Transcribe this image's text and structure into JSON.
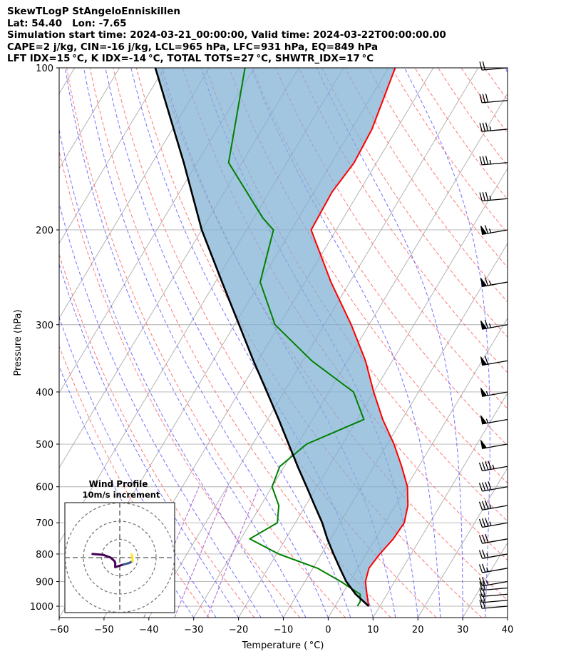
{
  "header": {
    "lines": [
      "SkewTLogP StAngeloEnniskillen",
      "Lat: 54.40   Lon: -7.65",
      "Simulation start time: 2024-03-21_00:00:00, Valid time: 2024-03-22T00:00:00.00",
      "CAPE=2 j/kg, CIN=-16 j/kg, LCL=965 hPa, LFC=931 hPa, EQ=849 hPa",
      "LFT IDX=15 °C, K IDX=-14 °C, TOTAL TOTS=27 °C, SHWTR_IDX=17 °C"
    ]
  },
  "chart_data": {
    "type": "line",
    "skew": "skew-T log-p",
    "xlabel": "Temperature ( °C)",
    "ylabel": "Pressure (hPa)",
    "xlim": [
      -60,
      40
    ],
    "ylim": [
      1050,
      100
    ],
    "x_ticks": [
      -60,
      -50,
      -40,
      -30,
      -20,
      -10,
      0,
      10,
      20,
      30,
      40
    ],
    "x_tick_labels": [
      "−60",
      "−50",
      "−40",
      "−30",
      "−20",
      "−10",
      "0",
      "10",
      "20",
      "30",
      "40"
    ],
    "y_ticks": [
      1000,
      900,
      800,
      700,
      600,
      500,
      400,
      300,
      200,
      100
    ],
    "y_tick_labels": [
      "1000",
      "900",
      "800",
      "700",
      "600",
      "500",
      "400",
      "300",
      "200",
      "100"
    ],
    "grid": true,
    "colors": {
      "temperature": "#ff0000",
      "dewpoint": "#008000",
      "parcel": "#000000",
      "cape_cin_fill": "#7fb0d4",
      "dry_adiabats": "#ff6060",
      "moist_adiabats": "#5a5aff",
      "mixing_ratio": "#b070d0",
      "isotherms": "#aaaaaa"
    },
    "series": [
      {
        "role": "temperature",
        "points": [
          [
            1000,
            7.5
          ],
          [
            950,
            5.5
          ],
          [
            900,
            3.5
          ],
          [
            850,
            2.5
          ],
          [
            800,
            3.0
          ],
          [
            750,
            4.0
          ],
          [
            700,
            4.3
          ],
          [
            650,
            2.8
          ],
          [
            600,
            0.2
          ],
          [
            550,
            -3.8
          ],
          [
            500,
            -8.5
          ],
          [
            450,
            -14.3
          ],
          [
            400,
            -20.0
          ],
          [
            350,
            -26.0
          ],
          [
            300,
            -34.0
          ],
          [
            250,
            -44.2
          ],
          [
            200,
            -55.6
          ],
          [
            170,
            -56.0
          ],
          [
            150,
            -55.0
          ],
          [
            130,
            -55.5
          ],
          [
            100,
            -58.5
          ]
        ]
      },
      {
        "role": "dewpoint",
        "points": [
          [
            1000,
            5.0
          ],
          [
            980,
            5.0
          ],
          [
            950,
            4.0
          ],
          [
            900,
            -2.0
          ],
          [
            850,
            -9.0
          ],
          [
            800,
            -19.5
          ],
          [
            750,
            -28.0
          ],
          [
            700,
            -24.0
          ],
          [
            650,
            -26.0
          ],
          [
            600,
            -30.0
          ],
          [
            550,
            -31.0
          ],
          [
            500,
            -28.0
          ],
          [
            450,
            -18.5
          ],
          [
            400,
            -24.5
          ],
          [
            350,
            -38.0
          ],
          [
            300,
            -51.0
          ],
          [
            250,
            -60.0
          ],
          [
            200,
            -64.0
          ],
          [
            190,
            -68.0
          ],
          [
            150,
            -83.0
          ],
          [
            100,
            -92.0
          ]
        ]
      },
      {
        "role": "parcel",
        "points": [
          [
            1000,
            7.5
          ],
          [
            950,
            3.0
          ],
          [
            900,
            -0.8
          ],
          [
            850,
            -4.0
          ],
          [
            800,
            -7.3
          ],
          [
            750,
            -10.7
          ],
          [
            700,
            -14.0
          ],
          [
            650,
            -18.0
          ],
          [
            600,
            -22.3
          ],
          [
            550,
            -27.0
          ],
          [
            500,
            -32.0
          ],
          [
            450,
            -37.5
          ],
          [
            400,
            -43.8
          ],
          [
            350,
            -51.0
          ],
          [
            300,
            -59.0
          ],
          [
            250,
            -68.5
          ],
          [
            200,
            -80.0
          ],
          [
            150,
            -93.0
          ],
          [
            100,
            -112.0
          ]
        ]
      }
    ],
    "wind_barbs_kt": [
      {
        "p": 1000,
        "speed": 20,
        "dir": 265
      },
      {
        "p": 975,
        "speed": 20,
        "dir": 265
      },
      {
        "p": 950,
        "speed": 20,
        "dir": 265
      },
      {
        "p": 925,
        "speed": 20,
        "dir": 265
      },
      {
        "p": 900,
        "speed": 25,
        "dir": 260
      },
      {
        "p": 850,
        "speed": 25,
        "dir": 260
      },
      {
        "p": 800,
        "speed": 25,
        "dir": 260
      },
      {
        "p": 750,
        "speed": 30,
        "dir": 260
      },
      {
        "p": 700,
        "speed": 35,
        "dir": 260
      },
      {
        "p": 650,
        "speed": 35,
        "dir": 260
      },
      {
        "p": 600,
        "speed": 40,
        "dir": 260
      },
      {
        "p": 550,
        "speed": 45,
        "dir": 260
      },
      {
        "p": 500,
        "speed": 50,
        "dir": 260
      },
      {
        "p": 450,
        "speed": 55,
        "dir": 260
      },
      {
        "p": 400,
        "speed": 55,
        "dir": 260
      },
      {
        "p": 350,
        "speed": 60,
        "dir": 260
      },
      {
        "p": 300,
        "speed": 65,
        "dir": 260
      },
      {
        "p": 250,
        "speed": 65,
        "dir": 260
      },
      {
        "p": 200,
        "speed": 65,
        "dir": 260
      },
      {
        "p": 175,
        "speed": 35,
        "dir": 265
      },
      {
        "p": 150,
        "speed": 35,
        "dir": 265
      },
      {
        "p": 130,
        "speed": 35,
        "dir": 265
      },
      {
        "p": 115,
        "speed": 30,
        "dir": 265
      },
      {
        "p": 100,
        "speed": 20,
        "dir": 265
      }
    ],
    "inset": {
      "title": "Wind Profile",
      "subtitle": "10m/s increment",
      "ring_step_ms": 10,
      "hodograph_uv_ms": [
        [
          -15,
          2
        ],
        [
          -9,
          1.5
        ],
        [
          -5,
          0
        ],
        [
          -3,
          -1.8
        ],
        [
          -2.5,
          -2.8
        ],
        [
          -2.5,
          -5.2
        ],
        [
          2,
          -3.8
        ],
        [
          5,
          -3
        ],
        [
          7,
          -2
        ],
        [
          7,
          0.2
        ],
        [
          6.5,
          1.8
        ]
      ],
      "colors": {
        "hodo_low": "#440154",
        "hodo_mid": "#3b528b",
        "hodo_high": "#fde725"
      }
    }
  }
}
